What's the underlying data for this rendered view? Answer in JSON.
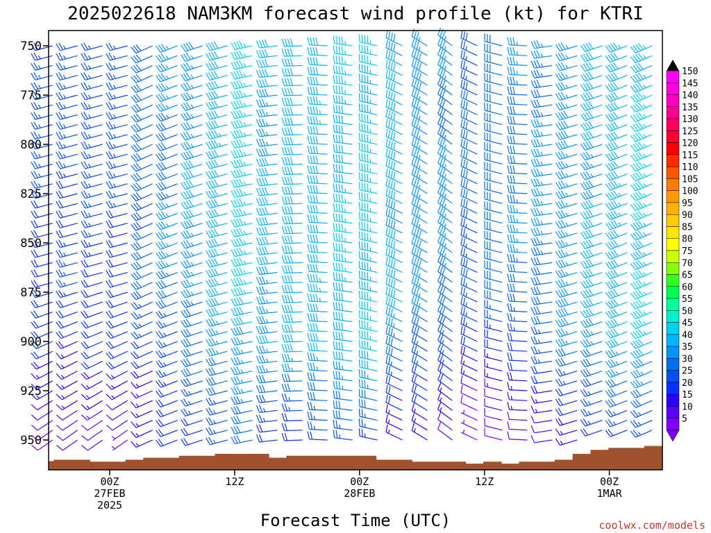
{
  "chart_data": {
    "type": "wind_barb_profile",
    "title": "2025022618 NAM3KM forecast wind profile (kt) for KTRI",
    "xlabel": "Forecast Time (UTC)",
    "ylabel": "",
    "y_ticks": [
      750,
      775,
      800,
      825,
      850,
      875,
      900,
      925,
      950
    ],
    "ylim": [
      745,
      965
    ],
    "y_inverted": true,
    "xlim_hours": [
      -3.5,
      31.5
    ],
    "x_tick_lines": [
      {
        "hour": 0,
        "line1": "00Z",
        "line2": "27FEB",
        "line3": "2025"
      },
      {
        "hour": 7,
        "line1": "12Z",
        "line2": "",
        "line3": ""
      },
      {
        "hour": 14,
        "line1": "00Z",
        "line2": "28FEB",
        "line3": ""
      },
      {
        "hour": 21,
        "line1": "12Z",
        "line2": "",
        "line3": ""
      },
      {
        "hour": 28,
        "line1": "00Z",
        "line2": "1MAR",
        "line3": ""
      }
    ],
    "levels": [
      750,
      755,
      760,
      765,
      770,
      775,
      780,
      785,
      790,
      795,
      800,
      805,
      810,
      815,
      820,
      825,
      830,
      835,
      840,
      845,
      850,
      855,
      860,
      865,
      870,
      875,
      880,
      885,
      890,
      895,
      900,
      905,
      910,
      915,
      920,
      925,
      930,
      935,
      940,
      945,
      950
    ],
    "colorbar": {
      "units": "kt",
      "labels": [
        150,
        145,
        140,
        135,
        130,
        125,
        120,
        115,
        110,
        105,
        100,
        95,
        90,
        85,
        80,
        75,
        70,
        65,
        60,
        55,
        50,
        45,
        40,
        35,
        30,
        25,
        20,
        15,
        10,
        5
      ]
    },
    "terrain_pressure": [
      960,
      960,
      961,
      961,
      960,
      959,
      959,
      958,
      958,
      957,
      957,
      957,
      959,
      958,
      958,
      958,
      958,
      958,
      960,
      960,
      961,
      961,
      961,
      962,
      961,
      962,
      961,
      961,
      960,
      957,
      955,
      954,
      954,
      953
    ],
    "grid": false,
    "legend": "colorbar-right"
  },
  "credit": "coolwx.com/models"
}
